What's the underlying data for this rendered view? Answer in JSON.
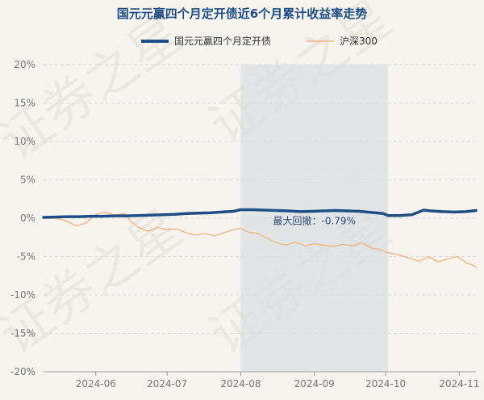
{
  "chart_data": {
    "type": "line",
    "title": "国元元赢四个月定开债近6个月累计收益率走势",
    "colors": {
      "fund": "#1f4e86",
      "index": "#f2b27a",
      "shade": "#d9dee3"
    },
    "y_ticks": [
      "20%",
      "15%",
      "10%",
      "5%",
      "0%",
      "-5%",
      "-10%",
      "-15%",
      "-20%"
    ],
    "ylim": [
      -20,
      20
    ],
    "x_ticks": [
      {
        "label": "2024-06",
        "x": 22
      },
      {
        "label": "2024-07",
        "x": 52
      },
      {
        "label": "2024-08",
        "x": 83
      },
      {
        "label": "2024-09",
        "x": 114
      },
      {
        "label": "2024-10",
        "x": 144
      },
      {
        "label": "2024-11",
        "x": 175
      }
    ],
    "xlim": [
      0,
      182
    ],
    "highlight": {
      "x_start": 83,
      "x_end": 145,
      "label": "最大回撤：-0.79%"
    },
    "series": [
      {
        "name": "国元元赢四个月定开债",
        "x": [
          0,
          5,
          10,
          15,
          20,
          25,
          30,
          35,
          40,
          45,
          50,
          55,
          60,
          65,
          70,
          75,
          80,
          83,
          88,
          93,
          98,
          103,
          108,
          113,
          118,
          123,
          128,
          133,
          138,
          143,
          145,
          150,
          155,
          160,
          163,
          168,
          173,
          178,
          182
        ],
        "values": [
          0.1,
          0.15,
          0.2,
          0.2,
          0.25,
          0.25,
          0.3,
          0.3,
          0.35,
          0.4,
          0.45,
          0.5,
          0.6,
          0.65,
          0.7,
          0.8,
          0.9,
          1.1,
          1.1,
          1.05,
          1.0,
          0.95,
          0.85,
          0.9,
          0.95,
          1.0,
          0.95,
          0.9,
          0.75,
          0.6,
          0.35,
          0.35,
          0.45,
          1.05,
          0.95,
          0.85,
          0.8,
          0.85,
          1.0
        ]
      },
      {
        "name": "沪深300",
        "x": [
          0,
          5,
          9,
          14,
          18,
          22,
          26,
          30,
          34,
          37,
          40,
          44,
          48,
          52,
          56,
          60,
          64,
          68,
          72,
          76,
          80,
          83,
          86,
          90,
          94,
          98,
          102,
          106,
          110,
          114,
          118,
          122,
          126,
          130,
          134,
          138,
          142,
          145,
          150,
          154,
          158,
          162,
          166,
          170,
          174,
          178,
          182
        ],
        "values": [
          0,
          0,
          -0.3,
          -1.0,
          -0.6,
          0.5,
          0.8,
          0.4,
          0.6,
          -0.5,
          -1.2,
          -1.7,
          -1.2,
          -1.5,
          -1.4,
          -1.9,
          -2.2,
          -2.0,
          -2.3,
          -1.9,
          -1.5,
          -1.3,
          -1.8,
          -2.0,
          -2.6,
          -3.2,
          -3.5,
          -3.1,
          -3.6,
          -3.3,
          -3.5,
          -3.7,
          -3.4,
          -3.6,
          -3.2,
          -3.9,
          -4.1,
          -4.5,
          -4.8,
          -5.2,
          -5.6,
          -5.0,
          -5.7,
          -5.3,
          -5.0,
          -5.8,
          -6.3
        ]
      }
    ]
  },
  "watermark": "证券之星"
}
